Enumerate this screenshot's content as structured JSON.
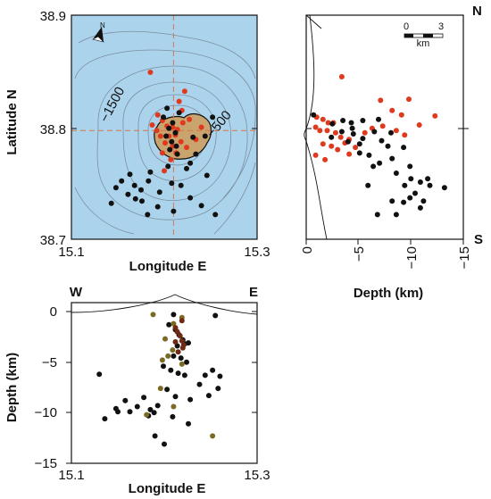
{
  "colors": {
    "sea": "#abd4ec",
    "island": "#c9a46e",
    "red_events": "#e03a1e",
    "black_events": "#111111",
    "olive_events": "#7a6a22",
    "brown_events": "#6e2a14",
    "crosshair": "#d9744a",
    "contour": "#7c8ea0"
  },
  "labels": {
    "lat_axis": "Latitude N",
    "lon_axis_top": "Longitude E",
    "lon_axis_bottom": "Longitude E",
    "depth_axis_right": "Depth (km)",
    "depth_axis_bottom": "Depth (km)",
    "north_corner": "N",
    "south_corner": "S",
    "west_corner": "W",
    "east_corner": "E",
    "north_arrow": "N",
    "contour_1500": "−1500",
    "contour_500": "−500",
    "scale_0": "0",
    "scale_3": "3",
    "scale_unit": "km"
  },
  "chart_data": [
    {
      "type": "scatter",
      "panel": "map",
      "xlabel": "Longitude E",
      "ylabel": "Latitude N",
      "xlim": [
        15.1,
        15.3
      ],
      "ylim": [
        38.7,
        38.9
      ],
      "x_ticks": [
        "15.1",
        "15.3"
      ],
      "y_ticks": [
        "38.9",
        "38.8",
        "38.7"
      ],
      "crosshair": {
        "lon": 15.21,
        "lat": 38.797
      },
      "series": [
        {
          "color_key": "red_events",
          "points": [
            [
              15.185,
              38.849
            ],
            [
              15.219,
              38.815
            ],
            [
              15.216,
              38.823
            ],
            [
              15.193,
              38.811
            ],
            [
              15.198,
              38.806
            ],
            [
              15.203,
              38.801
            ],
            [
              15.209,
              38.8
            ],
            [
              15.214,
              38.798
            ],
            [
              15.212,
              38.793
            ],
            [
              15.205,
              38.792
            ],
            [
              15.218,
              38.787
            ],
            [
              15.196,
              38.792
            ],
            [
              15.201,
              38.786
            ],
            [
              15.209,
              38.783
            ],
            [
              15.213,
              38.777
            ],
            [
              15.198,
              38.777
            ],
            [
              15.207,
              38.771
            ],
            [
              15.227,
              38.807
            ],
            [
              15.234,
              38.789
            ],
            [
              15.22,
              38.804
            ],
            [
              15.187,
              38.802
            ],
            [
              15.222,
              38.832
            ],
            [
              15.24,
              38.8
            ],
            [
              15.224,
              38.782
            ],
            [
              15.192,
              38.797
            ],
            [
              15.2,
              38.761
            ]
          ]
        },
        {
          "color_key": "black_events",
          "points": [
            [
              15.203,
              38.817
            ],
            [
              15.216,
              38.813
            ],
            [
              15.199,
              38.809
            ],
            [
              15.209,
              38.804
            ],
            [
              15.205,
              38.799
            ],
            [
              15.212,
              38.795
            ],
            [
              15.202,
              38.792
            ],
            [
              15.208,
              38.787
            ],
            [
              15.213,
              38.783
            ],
            [
              15.206,
              38.78
            ],
            [
              15.214,
              38.776
            ],
            [
              15.231,
              38.791
            ],
            [
              15.244,
              38.792
            ],
            [
              15.252,
              38.809
            ],
            [
              15.234,
              38.776
            ],
            [
              15.228,
              38.768
            ],
            [
              15.246,
              38.757
            ],
            [
              15.163,
              38.758
            ],
            [
              15.154,
              38.752
            ],
            [
              15.168,
              38.748
            ],
            [
              15.148,
              38.746
            ],
            [
              15.183,
              38.752
            ],
            [
              15.195,
              38.742
            ],
            [
              15.175,
              38.744
            ],
            [
              15.161,
              38.74
            ],
            [
              15.208,
              38.75
            ],
            [
              15.218,
              38.748
            ],
            [
              15.176,
              38.734
            ],
            [
              15.193,
              38.729
            ],
            [
              15.143,
              38.732
            ],
            [
              15.228,
              38.737
            ],
            [
              15.255,
              38.722
            ],
            [
              15.21,
              38.725
            ],
            [
              15.182,
              38.722
            ],
            [
              15.185,
              38.76
            ],
            [
              15.224,
              38.763
            ],
            [
              15.204,
              38.765
            ],
            [
              15.169,
              38.736
            ],
            [
              15.24,
              38.73
            ]
          ]
        }
      ]
    },
    {
      "type": "scatter",
      "panel": "latitude_vs_depth",
      "xlabel": "Depth (km)",
      "xlim": [
        0,
        -15
      ],
      "x_ticks": [
        "0",
        "−5",
        "−10",
        "−15"
      ],
      "ylim": [
        38.7,
        38.9
      ],
      "series": [
        {
          "color_key": "red_events",
          "points": [
            [
              -3.4,
              38.845
            ],
            [
              -7.1,
              38.824
            ],
            [
              -9.8,
              38.825
            ],
            [
              -12.3,
              38.81
            ],
            [
              -8.2,
              38.815
            ],
            [
              -9.1,
              38.811
            ],
            [
              -10.8,
              38.802
            ],
            [
              -7.3,
              38.801
            ],
            [
              -6.3,
              38.799
            ],
            [
              -5.6,
              38.795
            ],
            [
              -8.6,
              38.797
            ],
            [
              -9.4,
              38.793
            ],
            [
              -1.0,
              38.809
            ],
            [
              -1.6,
              38.807
            ],
            [
              -2.1,
              38.804
            ],
            [
              -2.6,
              38.804
            ],
            [
              -0.9,
              38.8
            ],
            [
              -1.3,
              38.797
            ],
            [
              -2.0,
              38.797
            ],
            [
              -2.8,
              38.795
            ],
            [
              -3.3,
              38.791
            ],
            [
              -4.1,
              38.789
            ],
            [
              -3.7,
              38.786
            ],
            [
              -1.6,
              38.785
            ],
            [
              -2.4,
              38.783
            ],
            [
              -4.7,
              38.782
            ],
            [
              -3.0,
              38.78
            ],
            [
              -0.9,
              38.775
            ],
            [
              -1.8,
              38.771
            ],
            [
              -4.1,
              38.776
            ]
          ]
        },
        {
          "color_key": "black_events",
          "points": [
            [
              -0.7,
              38.811
            ],
            [
              -3.5,
              38.806
            ],
            [
              -4.3,
              38.804
            ],
            [
              -5.4,
              38.806
            ],
            [
              -6.9,
              38.807
            ],
            [
              -2.5,
              38.803
            ],
            [
              -4.4,
              38.799
            ],
            [
              -3.4,
              38.796
            ],
            [
              -4.5,
              38.794
            ],
            [
              -5.4,
              38.79
            ],
            [
              -4.0,
              38.787
            ],
            [
              -5.1,
              38.785
            ],
            [
              -2.4,
              38.791
            ],
            [
              -6.5,
              38.796
            ],
            [
              -8.1,
              38.795
            ],
            [
              -7.2,
              38.788
            ],
            [
              -7.8,
              38.783
            ],
            [
              -9.3,
              38.782
            ],
            [
              -5.1,
              38.777
            ],
            [
              -6.0,
              38.775
            ],
            [
              -8.2,
              38.772
            ],
            [
              -7.0,
              38.768
            ],
            [
              -6.4,
              38.765
            ],
            [
              -9.9,
              38.765
            ],
            [
              -8.6,
              38.759
            ],
            [
              -10.0,
              38.754
            ],
            [
              -10.9,
              38.751
            ],
            [
              -11.6,
              38.754
            ],
            [
              -11.8,
              38.748
            ],
            [
              -13.2,
              38.746
            ],
            [
              -9.4,
              38.748
            ],
            [
              -10.4,
              38.741
            ],
            [
              -9.9,
              38.737
            ],
            [
              -11.2,
              38.734
            ],
            [
              -10.9,
              38.728
            ],
            [
              -8.2,
              38.734
            ],
            [
              -9.3,
              38.733
            ],
            [
              -6.8,
              38.722
            ],
            [
              -8.6,
              38.722
            ],
            [
              -5.9,
              38.748
            ]
          ]
        }
      ]
    },
    {
      "type": "scatter",
      "panel": "depth_vs_longitude",
      "xlabel": "Longitude E",
      "ylabel": "Depth (km)",
      "xlim": [
        15.1,
        15.3
      ],
      "x_ticks": [
        "15.1",
        "15.3"
      ],
      "ylim": [
        -15,
        0
      ],
      "y_ticks": [
        "0",
        "−5",
        "−10",
        "−15"
      ],
      "series": [
        {
          "color_key": "black_events",
          "points": [
            [
              15.21,
              -0.3
            ],
            [
              15.205,
              -1.3
            ],
            [
              15.212,
              -1.8
            ],
            [
              15.216,
              -2.3
            ],
            [
              15.22,
              -2.8
            ],
            [
              15.222,
              -3.2
            ],
            [
              15.214,
              -3.4
            ],
            [
              15.226,
              -3.1
            ],
            [
              15.21,
              -4.4
            ],
            [
              15.218,
              -4.6
            ],
            [
              15.224,
              -5.0
            ],
            [
              15.199,
              -5.4
            ],
            [
              15.207,
              -5.8
            ],
            [
              15.215,
              -6.1
            ],
            [
              15.222,
              -6.3
            ],
            [
              15.244,
              -6.3
            ],
            [
              15.252,
              -5.8
            ],
            [
              15.26,
              -6.4
            ],
            [
              15.238,
              -7.2
            ],
            [
              15.258,
              -7.6
            ],
            [
              15.203,
              -7.7
            ],
            [
              15.212,
              -8.4
            ],
            [
              15.228,
              -8.7
            ],
            [
              15.248,
              -8.3
            ],
            [
              15.158,
              -8.8
            ],
            [
              15.178,
              -8.5
            ],
            [
              15.171,
              -9.4
            ],
            [
              15.163,
              -9.9
            ],
            [
              15.185,
              -9.7
            ],
            [
              15.189,
              -10.0
            ],
            [
              15.183,
              -10.3
            ],
            [
              15.193,
              -9.3
            ],
            [
              15.148,
              -9.6
            ],
            [
              15.136,
              -10.6
            ],
            [
              15.15,
              -9.9
            ],
            [
              15.209,
              -10.4
            ],
            [
              15.226,
              -11.1
            ],
            [
              15.19,
              -12.3
            ],
            [
              15.2,
              -13.1
            ],
            [
              15.13,
              -6.2
            ],
            [
              15.255,
              -0.4
            ]
          ]
        },
        {
          "color_key": "olive_events",
          "points": [
            [
              15.188,
              -0.3
            ],
            [
              15.21,
              -1.2
            ],
            [
              15.219,
              -0.6
            ],
            [
              15.201,
              -2.7
            ],
            [
              15.209,
              -3.8
            ],
            [
              15.204,
              -4.4
            ],
            [
              15.198,
              -4.8
            ],
            [
              15.219,
              -5.2
            ],
            [
              15.196,
              -7.6
            ],
            [
              15.21,
              -9.4
            ],
            [
              15.181,
              -10.2
            ],
            [
              15.252,
              -12.3
            ]
          ]
        },
        {
          "color_key": "brown_events",
          "points": [
            [
              15.212,
              -1.6
            ],
            [
              15.214,
              -2.0
            ],
            [
              15.217,
              -2.4
            ],
            [
              15.219,
              -2.9
            ],
            [
              15.221,
              -3.3
            ],
            [
              15.212,
              -3.0
            ],
            [
              15.22,
              -3.6
            ],
            [
              15.215,
              -4.0
            ],
            [
              15.219,
              -0.9
            ]
          ]
        }
      ]
    }
  ]
}
